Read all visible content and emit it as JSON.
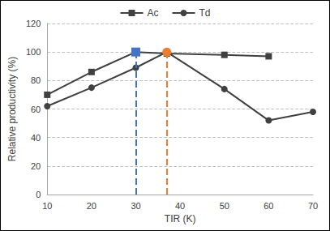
{
  "chart_data": {
    "type": "line",
    "x_label": "TIR (K)",
    "y_label": "Relative productivity (%)",
    "xlim": [
      10,
      70
    ],
    "xticks": [
      10,
      20,
      30,
      40,
      50,
      60,
      70
    ],
    "ylim": [
      0,
      120
    ],
    "yticks": [
      0,
      20,
      40,
      60,
      80,
      100,
      120
    ],
    "grid": true,
    "legend": "top",
    "series": [
      {
        "name": "Ac",
        "color": "#404040",
        "marker": "square",
        "x": [
          10,
          20,
          30,
          37,
          50,
          60
        ],
        "values": [
          70,
          86,
          100,
          99,
          98,
          97
        ],
        "highlight": {
          "x": 30,
          "color": "#4472c4"
        }
      },
      {
        "name": "Td",
        "color": "#404040",
        "marker": "circle",
        "x": [
          10,
          20,
          30,
          37,
          50,
          60,
          70
        ],
        "values": [
          62,
          75,
          89,
          100,
          74,
          52,
          58
        ],
        "highlight": {
          "x": 37,
          "color": "#ed7d31"
        }
      }
    ]
  }
}
